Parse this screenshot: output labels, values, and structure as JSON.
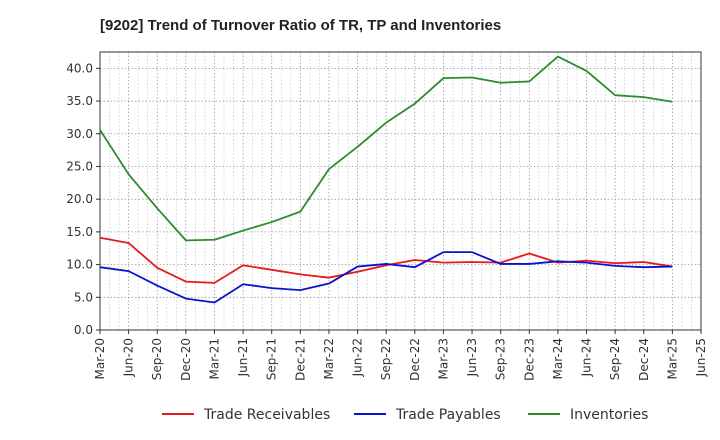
{
  "chart_data": {
    "type": "line",
    "title": "[9202]  Trend of Turnover Ratio of TR, TP and Inventories",
    "xlabel": "",
    "ylabel": "",
    "ylim": [
      0,
      42.5
    ],
    "yticks": [
      "0.0",
      "5.0",
      "10.0",
      "15.0",
      "20.0",
      "25.0",
      "30.0",
      "35.0",
      "40.0"
    ],
    "ytick_values": [
      0,
      5,
      10,
      15,
      20,
      25,
      30,
      35,
      40
    ],
    "x_tick_labels": [
      "Mar-20",
      "Jun-20",
      "Sep-20",
      "Dec-20",
      "Mar-21",
      "Jun-21",
      "Sep-21",
      "Dec-21",
      "Mar-22",
      "Jun-22",
      "Sep-22",
      "Dec-22",
      "Mar-23",
      "Jun-23",
      "Sep-23",
      "Dec-23",
      "Mar-24",
      "Jun-24",
      "Sep-24",
      "Dec-24",
      "Mar-25",
      "Jun-25"
    ],
    "grid": true,
    "legend_position": "bottom",
    "x": [
      "Mar-20",
      "Jun-20",
      "Sep-20",
      "Dec-20",
      "Mar-21",
      "Jun-21",
      "Sep-21",
      "Dec-21",
      "Mar-22",
      "Jun-22",
      "Sep-22",
      "Dec-22",
      "Mar-23",
      "Jun-23",
      "Sep-23",
      "Dec-23",
      "Mar-24",
      "Jun-24",
      "Sep-24",
      "Dec-24",
      "Mar-25"
    ],
    "series": [
      {
        "name": "Trade Receivables",
        "color": "#e41a1c",
        "values": [
          14.1,
          13.3,
          9.5,
          7.4,
          7.2,
          9.9,
          9.2,
          8.5,
          8.0,
          8.9,
          9.9,
          10.7,
          10.3,
          10.4,
          10.3,
          11.7,
          10.3,
          10.6,
          10.2,
          10.4,
          9.7
        ]
      },
      {
        "name": "Trade Payables",
        "color": "#0a14c8",
        "values": [
          9.6,
          9.0,
          6.8,
          4.8,
          4.2,
          7.0,
          6.4,
          6.1,
          7.1,
          9.7,
          10.1,
          9.6,
          11.9,
          11.9,
          10.1,
          10.1,
          10.5,
          10.3,
          9.8,
          9.6,
          9.7
        ]
      },
      {
        "name": "Inventories",
        "color": "#2e8b2e",
        "values": [
          30.6,
          23.8,
          18.6,
          13.7,
          13.8,
          15.2,
          16.5,
          18.1,
          24.6,
          28.0,
          31.7,
          34.6,
          38.5,
          38.6,
          37.8,
          38.0,
          41.8,
          39.6,
          35.9,
          35.6,
          34.9
        ]
      }
    ]
  }
}
